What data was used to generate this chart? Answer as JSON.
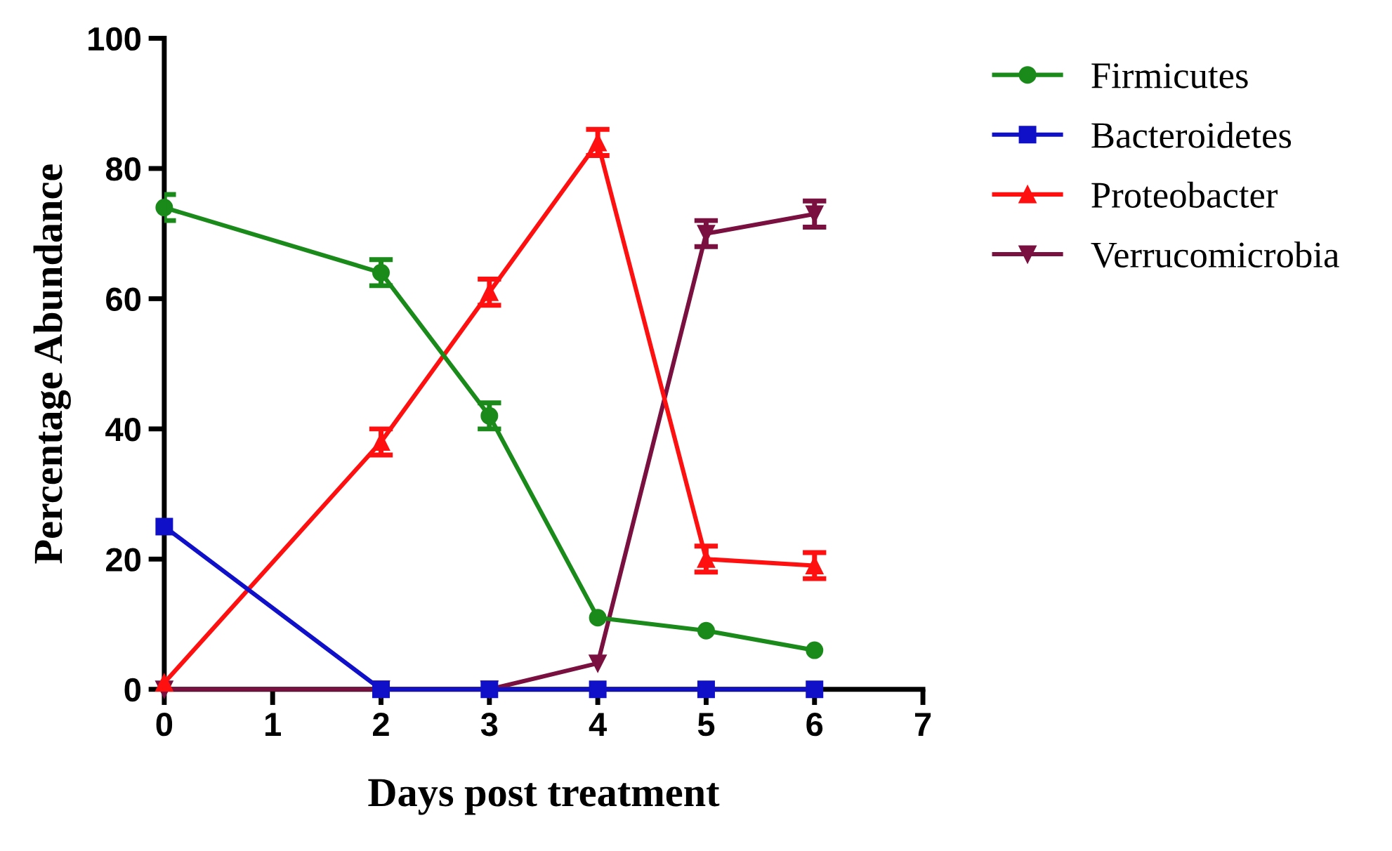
{
  "chart_data": {
    "type": "line",
    "xlabel": "Days post treatment",
    "ylabel": "Percentage Abundance",
    "x": [
      0,
      2,
      3,
      4,
      5,
      6
    ],
    "xlim": [
      0,
      7
    ],
    "xticks": [
      0,
      1,
      2,
      3,
      4,
      5,
      6,
      7
    ],
    "ylim": [
      0,
      100
    ],
    "yticks": [
      0,
      20,
      40,
      60,
      80,
      100
    ],
    "grid": false,
    "legend": "right",
    "line_style": "solid",
    "series": [
      {
        "name": "Firmicutes",
        "color": "#1a8a1a",
        "marker": "circle",
        "values": [
          74,
          64,
          42,
          11,
          9,
          6
        ],
        "errors": [
          2,
          2,
          2,
          null,
          null,
          null
        ]
      },
      {
        "name": "Bacteroidetes",
        "color": "#1010c8",
        "marker": "square",
        "values": [
          25,
          0,
          0,
          0,
          0,
          0
        ]
      },
      {
        "name": "Proteobacter",
        "color": "#ff1010",
        "marker": "triangle",
        "values": [
          1,
          38,
          61,
          84,
          20,
          19
        ],
        "errors": [
          null,
          2,
          2,
          2,
          2,
          2
        ]
      },
      {
        "name": "Verrucomicrobia",
        "color": "#7a1040",
        "marker": "triangle_down",
        "values": [
          0,
          0,
          0,
          4,
          70,
          73
        ],
        "errors": [
          null,
          null,
          null,
          null,
          2,
          2
        ]
      }
    ]
  }
}
